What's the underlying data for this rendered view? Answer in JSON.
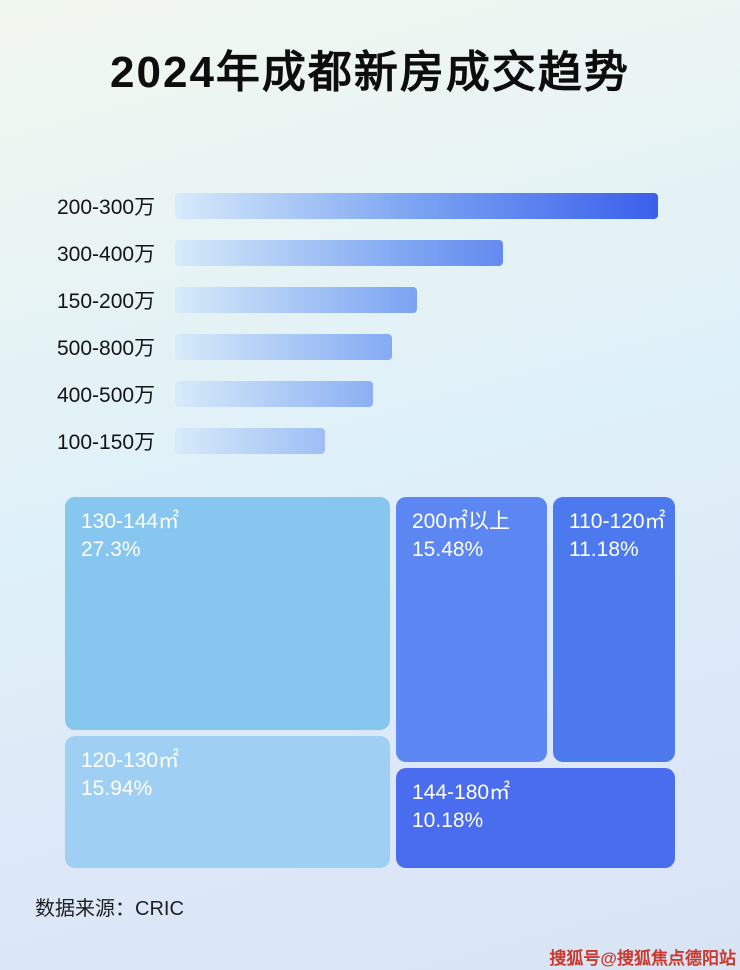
{
  "title": "2024年成都新房成交趋势",
  "chart_data": [
    {
      "type": "bar",
      "orientation": "horizontal",
      "title": "2024年成都新房成交趋势",
      "categories": [
        "200-300万",
        "300-400万",
        "150-200万",
        "500-800万",
        "400-500万",
        "100-150万"
      ],
      "values": [
        100,
        68,
        50,
        45,
        41,
        31
      ],
      "values_note": "no numeric data labels shown; values are bar lengths as % of longest bar",
      "bar_gradient": [
        "#d7ebfa",
        "#7ba3f2",
        "#3a5fec"
      ],
      "grid": false,
      "legend": false
    },
    {
      "type": "treemap",
      "items": [
        {
          "label": "130-144㎡",
          "value": "27.3%",
          "color": "#87c6ef"
        },
        {
          "label": "120-130㎡",
          "value": "15.94%",
          "color": "#9fd0f3"
        },
        {
          "label": "200㎡以上",
          "value": "15.48%",
          "color": "#5c86f1"
        },
        {
          "label": "110-120㎡",
          "value": "11.18%",
          "color": "#4d79ef"
        },
        {
          "label": "144-180㎡",
          "value": "10.18%",
          "color": "#4a6cee"
        }
      ]
    }
  ],
  "footer": {
    "source": "数据来源：CRIC"
  },
  "watermark": "搜狐号@搜狐焦点德阳站"
}
